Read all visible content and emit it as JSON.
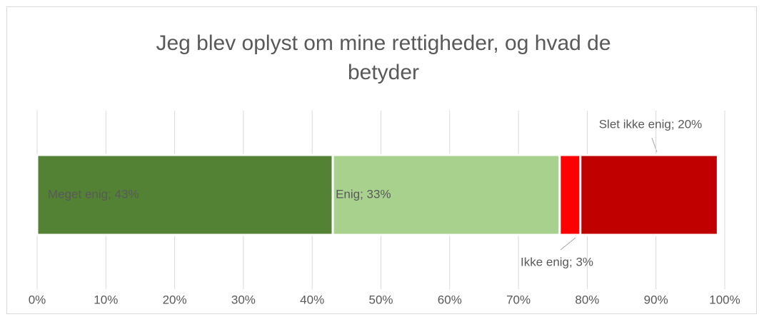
{
  "chart_data": {
    "type": "stacked-bar-horizontal",
    "title": "Jeg blev oplyst om mine rettigheder, og hvad de betyder",
    "series": [
      {
        "color": "#548235",
        "values": [
          43
        ],
        "value_labels": [
          "Meget enig; 43%"
        ]
      },
      {
        "color": "#a9d18e",
        "values": [
          33
        ],
        "value_labels": [
          "Enig; 33%"
        ]
      },
      {
        "color": "#ff0000",
        "values": [
          3
        ],
        "value_labels": [
          "Ikke enig; 3%"
        ]
      },
      {
        "color": "#c00000",
        "values": [
          20
        ],
        "value_labels": [
          "Slet ikke enig; 20%"
        ]
      }
    ],
    "xlim": [
      0,
      100
    ],
    "xticks": [
      {
        "value": 0,
        "label": "0%"
      },
      {
        "value": 10,
        "label": "10%"
      },
      {
        "value": 20,
        "label": "20%"
      },
      {
        "value": 30,
        "label": "30%"
      },
      {
        "value": 40,
        "label": "40%"
      },
      {
        "value": 50,
        "label": "50%"
      },
      {
        "value": 60,
        "label": "60%"
      },
      {
        "value": 70,
        "label": "70%"
      },
      {
        "value": 80,
        "label": "80%"
      },
      {
        "value": 90,
        "label": "90%"
      },
      {
        "value": 100,
        "label": "100%"
      }
    ],
    "grid": true
  }
}
